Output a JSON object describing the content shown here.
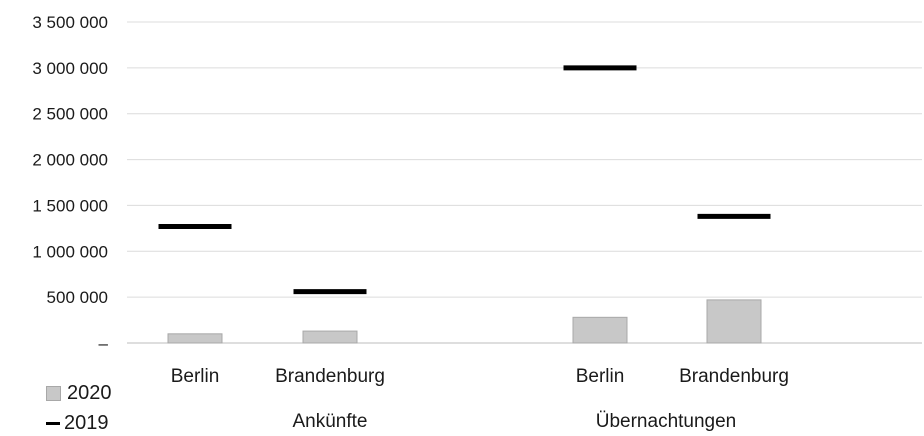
{
  "chart_data": {
    "type": "bar",
    "groups": [
      {
        "label": "Ankünfte",
        "categories": [
          "Berlin",
          "Brandenburg"
        ]
      },
      {
        "label": "Übernachtungen",
        "categories": [
          "Berlin",
          "Brandenburg"
        ]
      }
    ],
    "series": [
      {
        "name": "2020",
        "kind": "bar",
        "color": "#c8c8c8",
        "values": [
          100000,
          130000,
          280000,
          470000
        ]
      },
      {
        "name": "2019",
        "kind": "marker-line",
        "color": "#000000",
        "values": [
          1270000,
          560000,
          3000000,
          1380000
        ]
      }
    ],
    "yaxis": {
      "ylim": [
        0,
        3500000
      ],
      "ticks": [
        0,
        500000,
        1000000,
        1500000,
        2000000,
        2500000,
        3000000,
        3500000
      ],
      "tick_labels": [
        "–",
        "500 000",
        "1 000 000",
        "1 500 000",
        "2 000 000",
        "2 500 000",
        "3 000 000",
        "3 500 000"
      ]
    },
    "grid": true,
    "legend": {
      "position": "bottom-left",
      "entries": [
        "2020",
        "2019"
      ]
    }
  }
}
